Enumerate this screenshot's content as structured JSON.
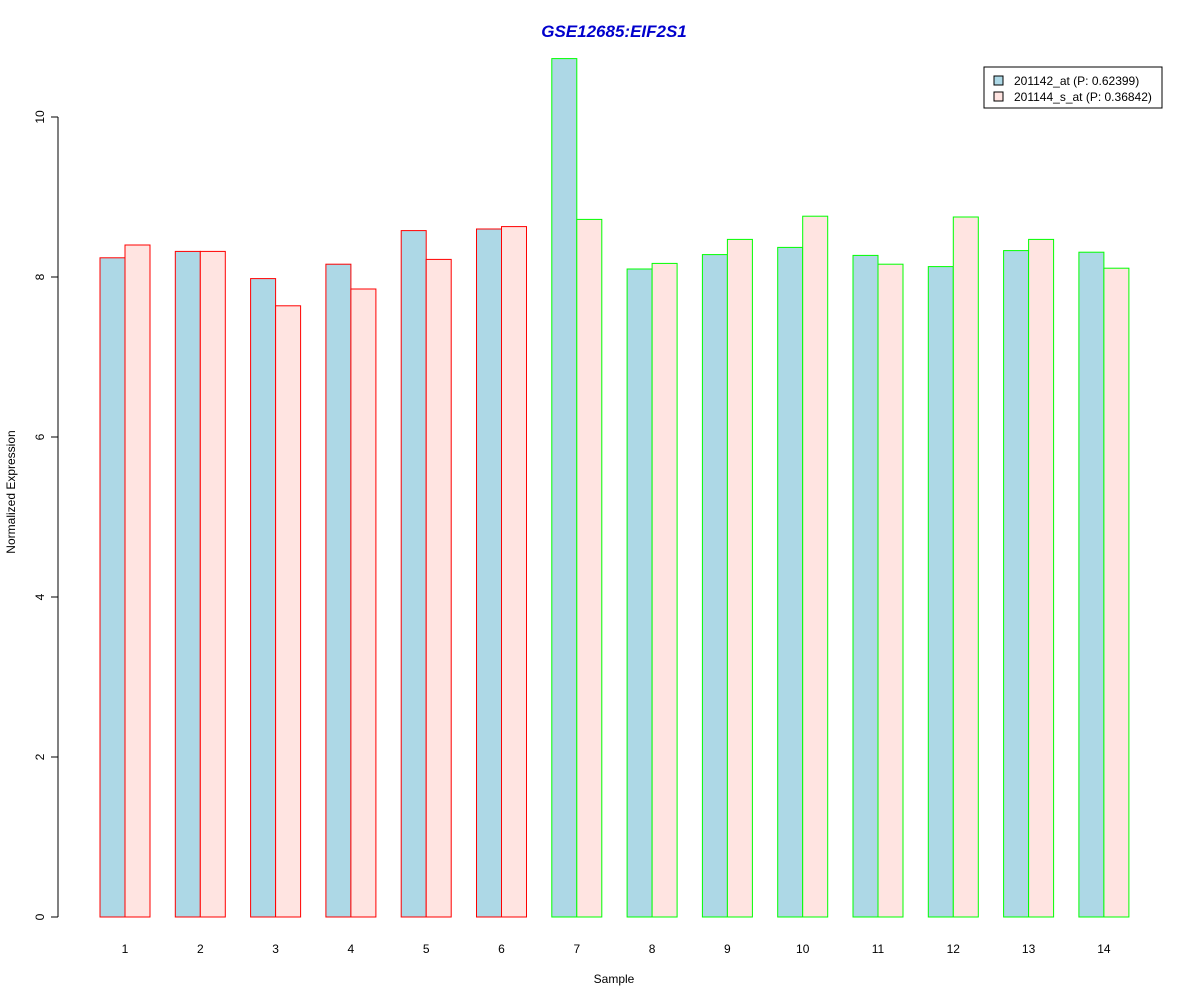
{
  "chart_data": {
    "type": "bar",
    "title": "GSE12685:EIF2S1",
    "xlabel": "Sample",
    "ylabel": "Normalized Expression",
    "categories": [
      "1",
      "2",
      "3",
      "4",
      "5",
      "6",
      "7",
      "8",
      "9",
      "10",
      "11",
      "12",
      "13",
      "14"
    ],
    "yticks": [
      "0",
      "2",
      "4",
      "6",
      "8",
      "10"
    ],
    "ylim": [
      0,
      10.8
    ],
    "grid": false,
    "legend_position": "top-right",
    "series": [
      {
        "name": "201142_at (P: 0.62399)",
        "fill": "#ADD8E6",
        "values": [
          8.24,
          8.32,
          7.98,
          8.16,
          8.58,
          8.6,
          10.73,
          8.1,
          8.28,
          8.37,
          8.27,
          8.13,
          8.33,
          8.31
        ]
      },
      {
        "name": "201144_s_at (P: 0.36842)",
        "fill": "#FFE4E1",
        "values": [
          8.4,
          8.32,
          7.64,
          7.85,
          8.22,
          8.63,
          8.72,
          8.17,
          8.47,
          8.76,
          8.16,
          8.75,
          8.47,
          8.11
        ]
      }
    ],
    "group_border_colors": [
      "#FF0000",
      "#FF0000",
      "#FF0000",
      "#FF0000",
      "#FF0000",
      "#FF0000",
      "#00FF00",
      "#00FF00",
      "#00FF00",
      "#00FF00",
      "#00FF00",
      "#00FF00",
      "#00FF00",
      "#00FF00"
    ],
    "title_color": "#0000CC"
  }
}
